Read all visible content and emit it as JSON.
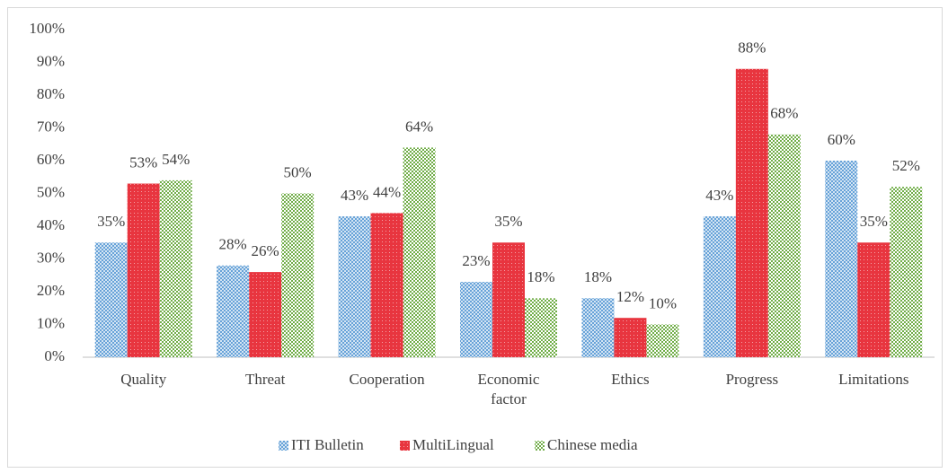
{
  "chart_data": {
    "type": "bar",
    "categories": [
      "Quality",
      "Threat",
      "Cooperation",
      "Economic factor",
      "Ethics",
      "Progress",
      "Limitations"
    ],
    "series": [
      {
        "name": "ITI Bulletin",
        "color": "#5b9bd5",
        "values": [
          35,
          28,
          43,
          23,
          18,
          43,
          60
        ],
        "value_labels": [
          "35%",
          "28%",
          "43%",
          "23%",
          "18%",
          "43%",
          "60%"
        ]
      },
      {
        "name": "MultiLingual",
        "color": "#e8353f",
        "values": [
          53,
          26,
          44,
          35,
          12,
          88,
          35
        ],
        "value_labels": [
          "53%",
          "26%",
          "44%",
          "35%",
          "12%",
          "88%",
          "35%"
        ]
      },
      {
        "name": "Chinese media",
        "color": "#70ad47",
        "values": [
          54,
          50,
          64,
          18,
          10,
          68,
          52
        ],
        "value_labels": [
          "54%",
          "50%",
          "64%",
          "18%",
          "10%",
          "68%",
          "52%"
        ]
      }
    ],
    "ylim": [
      0,
      100
    ],
    "yticks": [
      {
        "value": 0,
        "label": "0%"
      },
      {
        "value": 10,
        "label": "10%"
      },
      {
        "value": 20,
        "label": "20%"
      },
      {
        "value": 30,
        "label": "30%"
      },
      {
        "value": 40,
        "label": "40%"
      },
      {
        "value": 50,
        "label": "50%"
      },
      {
        "value": 60,
        "label": "60%"
      },
      {
        "value": 70,
        "label": "70%"
      },
      {
        "value": 80,
        "label": "80%"
      },
      {
        "value": 90,
        "label": "90%"
      },
      {
        "value": 100,
        "label": "100%"
      }
    ],
    "legend": "bottom"
  }
}
